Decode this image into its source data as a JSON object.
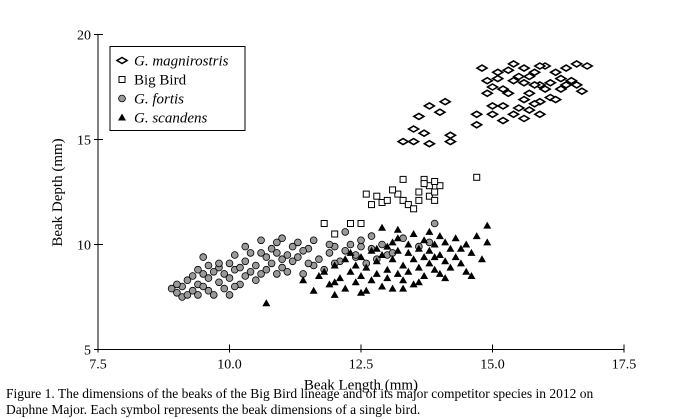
{
  "chart_data": {
    "type": "scatter",
    "xlabel": "Beak Length (mm)",
    "ylabel": "Beak Depth (mm)",
    "xlim": [
      7.5,
      17.5
    ],
    "ylim": [
      5,
      20
    ],
    "x_ticks": [
      7.5,
      10.0,
      12.5,
      15.0,
      17.5
    ],
    "x_tick_labels": [
      "7.5",
      "10.0",
      "12.5",
      "15.0",
      "17.5"
    ],
    "y_ticks": [
      5,
      10,
      15,
      20
    ],
    "y_tick_labels": [
      "5",
      "10",
      "15",
      "20"
    ],
    "grid": false,
    "legend_placement": "top-left",
    "series": [
      {
        "name": "G. magnirostris",
        "italic": true,
        "marker": "diamond",
        "color": "#000000",
        "points": [
          [
            13.3,
            14.9
          ],
          [
            13.5,
            14.9
          ],
          [
            13.7,
            15.3
          ],
          [
            13.8,
            14.8
          ],
          [
            14.2,
            14.9
          ],
          [
            13.5,
            15.5
          ],
          [
            13.6,
            16.1
          ],
          [
            14.0,
            16.3
          ],
          [
            13.8,
            16.6
          ],
          [
            14.1,
            16.8
          ],
          [
            14.2,
            15.2
          ],
          [
            14.7,
            15.7
          ],
          [
            15.0,
            16.6
          ],
          [
            14.9,
            17.2
          ],
          [
            15.2,
            17.4
          ],
          [
            15.4,
            17.8
          ],
          [
            15.6,
            17.7
          ],
          [
            15.1,
            17.9
          ],
          [
            15.5,
            18.0
          ],
          [
            15.8,
            18.2
          ],
          [
            15.9,
            17.6
          ],
          [
            16.0,
            17.4
          ],
          [
            15.7,
            17.2
          ],
          [
            15.3,
            17.2
          ],
          [
            15.0,
            17.5
          ],
          [
            15.6,
            16.9
          ],
          [
            15.9,
            16.8
          ],
          [
            16.1,
            17.0
          ],
          [
            15.2,
            16.6
          ],
          [
            15.5,
            16.5
          ],
          [
            15.7,
            16.4
          ],
          [
            15.9,
            16.2
          ],
          [
            15.4,
            16.2
          ],
          [
            15.6,
            16.0
          ],
          [
            15.8,
            16.7
          ],
          [
            16.2,
            16.9
          ],
          [
            16.0,
            18.5
          ],
          [
            16.4,
            18.4
          ],
          [
            16.6,
            18.6
          ],
          [
            16.8,
            18.5
          ],
          [
            16.3,
            17.9
          ],
          [
            16.5,
            17.8
          ],
          [
            16.1,
            17.7
          ],
          [
            16.2,
            18.2
          ],
          [
            15.1,
            18.2
          ],
          [
            15.4,
            18.6
          ],
          [
            15.6,
            18.4
          ],
          [
            14.8,
            18.4
          ],
          [
            16.3,
            17.4
          ],
          [
            16.7,
            17.3
          ],
          [
            16.6,
            17.6
          ],
          [
            15.9,
            18.5
          ],
          [
            15.7,
            18.0
          ],
          [
            14.9,
            17.8
          ],
          [
            15.3,
            18.3
          ],
          [
            16.4,
            17.6
          ],
          [
            15.0,
            16.2
          ],
          [
            15.2,
            15.9
          ],
          [
            14.7,
            16.2
          ],
          [
            15.8,
            17.6
          ]
        ]
      },
      {
        "name": "Big Bird",
        "italic": false,
        "marker": "square",
        "color": "#000000",
        "points": [
          [
            11.8,
            11.0
          ],
          [
            12.0,
            10.5
          ],
          [
            12.3,
            11.0
          ],
          [
            12.5,
            11.0
          ],
          [
            12.6,
            12.4
          ],
          [
            12.7,
            11.9
          ],
          [
            12.9,
            12.0
          ],
          [
            13.0,
            12.1
          ],
          [
            13.2,
            12.4
          ],
          [
            13.3,
            12.1
          ],
          [
            13.4,
            11.9
          ],
          [
            13.5,
            11.7
          ],
          [
            13.7,
            13.1
          ],
          [
            13.6,
            12.5
          ],
          [
            13.8,
            12.3
          ],
          [
            13.9,
            12.5
          ],
          [
            13.8,
            12.8
          ],
          [
            13.9,
            12.1
          ],
          [
            14.0,
            12.8
          ],
          [
            13.7,
            12.9
          ],
          [
            13.3,
            13.1
          ],
          [
            13.9,
            13.0
          ],
          [
            14.7,
            13.2
          ],
          [
            12.8,
            12.3
          ],
          [
            13.1,
            12.6
          ],
          [
            13.6,
            12.1
          ]
        ]
      },
      {
        "name": "G. fortis",
        "italic": false,
        "italic_label": true,
        "marker": "circle",
        "color": "#999999",
        "points": [
          [
            8.9,
            7.9
          ],
          [
            9.0,
            7.7
          ],
          [
            9.1,
            7.5
          ],
          [
            9.1,
            8.0
          ],
          [
            9.2,
            7.6
          ],
          [
            9.2,
            8.3
          ],
          [
            9.3,
            7.8
          ],
          [
            9.3,
            8.5
          ],
          [
            9.4,
            8.1
          ],
          [
            9.4,
            7.6
          ],
          [
            9.5,
            8.6
          ],
          [
            9.5,
            8.0
          ],
          [
            9.5,
            9.4
          ],
          [
            9.6,
            7.8
          ],
          [
            9.6,
            8.4
          ],
          [
            9.7,
            8.7
          ],
          [
            9.7,
            7.6
          ],
          [
            9.8,
            8.9
          ],
          [
            9.8,
            8.2
          ],
          [
            9.9,
            8.6
          ],
          [
            9.9,
            7.9
          ],
          [
            10.0,
            9.1
          ],
          [
            10.0,
            8.4
          ],
          [
            10.0,
            7.6
          ],
          [
            10.1,
            8.8
          ],
          [
            10.1,
            9.5
          ],
          [
            10.2,
            8.1
          ],
          [
            10.2,
            8.9
          ],
          [
            10.3,
            8.5
          ],
          [
            10.3,
            9.2
          ],
          [
            10.4,
            9.6
          ],
          [
            10.4,
            8.7
          ],
          [
            10.5,
            8.3
          ],
          [
            10.5,
            9.0
          ],
          [
            10.6,
            10.2
          ],
          [
            10.6,
            8.6
          ],
          [
            10.7,
            9.4
          ],
          [
            10.7,
            8.8
          ],
          [
            10.8,
            9.8
          ],
          [
            10.8,
            9.1
          ],
          [
            10.9,
            10.1
          ],
          [
            10.9,
            9.6
          ],
          [
            11.0,
            9.3
          ],
          [
            11.0,
            8.9
          ],
          [
            11.0,
            10.3
          ],
          [
            11.1,
            9.5
          ],
          [
            11.1,
            8.7
          ],
          [
            11.2,
            9.9
          ],
          [
            11.2,
            9.2
          ],
          [
            11.3,
            10.1
          ],
          [
            11.3,
            9.4
          ],
          [
            11.4,
            8.6
          ],
          [
            11.5,
            9.8
          ],
          [
            11.6,
            9.0
          ],
          [
            11.6,
            10.2
          ],
          [
            11.7,
            9.3
          ],
          [
            11.8,
            8.8
          ],
          [
            11.9,
            9.6
          ],
          [
            12.0,
            9.9
          ],
          [
            12.1,
            9.2
          ],
          [
            12.2,
            9.7
          ],
          [
            12.3,
            10.0
          ],
          [
            12.4,
            9.4
          ],
          [
            12.5,
            9.9
          ],
          [
            12.6,
            9.1
          ],
          [
            12.7,
            9.8
          ],
          [
            12.8,
            9.3
          ],
          [
            12.9,
            10.0
          ],
          [
            13.0,
            9.5
          ],
          [
            13.1,
            9.6
          ],
          [
            13.3,
            10.3
          ],
          [
            13.6,
            9.9
          ],
          [
            13.9,
            11.0
          ],
          [
            12.2,
            10.6
          ],
          [
            12.5,
            10.2
          ],
          [
            9.0,
            8.1
          ],
          [
            9.4,
            8.8
          ],
          [
            9.8,
            9.1
          ],
          [
            10.1,
            8.0
          ],
          [
            10.6,
            9.6
          ],
          [
            11.5,
            9.1
          ],
          [
            11.9,
            10.0
          ],
          [
            12.7,
            10.4
          ],
          [
            13.8,
            10.1
          ],
          [
            9.6,
            9.0
          ],
          [
            10.3,
            9.9
          ],
          [
            10.9,
            8.6
          ],
          [
            11.4,
            9.7
          ],
          [
            12.0,
            9.1
          ],
          [
            12.4,
            9.5
          ]
        ]
      },
      {
        "name": "G. scandens",
        "italic": true,
        "marker": "triangle",
        "color": "#000000",
        "points": [
          [
            10.7,
            7.2
          ],
          [
            11.4,
            8.3
          ],
          [
            11.6,
            7.8
          ],
          [
            11.8,
            8.7
          ],
          [
            11.9,
            8.1
          ],
          [
            12.0,
            9.0
          ],
          [
            12.0,
            7.6
          ],
          [
            12.1,
            8.4
          ],
          [
            12.2,
            9.3
          ],
          [
            12.2,
            7.9
          ],
          [
            12.3,
            8.7
          ],
          [
            12.3,
            9.6
          ],
          [
            12.4,
            8.2
          ],
          [
            12.4,
            9.0
          ],
          [
            12.5,
            8.5
          ],
          [
            12.5,
            9.4
          ],
          [
            12.6,
            7.8
          ],
          [
            12.6,
            8.9
          ],
          [
            12.7,
            8.3
          ],
          [
            12.7,
            9.7
          ],
          [
            12.8,
            8.6
          ],
          [
            12.8,
            9.2
          ],
          [
            12.9,
            8.0
          ],
          [
            12.9,
            9.5
          ],
          [
            13.0,
            8.4
          ],
          [
            13.0,
            9.9
          ],
          [
            13.0,
            8.8
          ],
          [
            13.1,
            9.3
          ],
          [
            13.1,
            7.9
          ],
          [
            13.2,
            8.6
          ],
          [
            13.2,
            9.7
          ],
          [
            13.2,
            10.3
          ],
          [
            13.3,
            9.0
          ],
          [
            13.3,
            8.3
          ],
          [
            13.4,
            9.6
          ],
          [
            13.4,
            10.0
          ],
          [
            13.4,
            8.7
          ],
          [
            13.5,
            9.3
          ],
          [
            13.5,
            10.5
          ],
          [
            13.5,
            8.1
          ],
          [
            13.6,
            9.8
          ],
          [
            13.6,
            8.9
          ],
          [
            13.7,
            10.2
          ],
          [
            13.7,
            9.4
          ],
          [
            13.7,
            8.5
          ],
          [
            13.8,
            9.7
          ],
          [
            13.8,
            10.6
          ],
          [
            13.8,
            9.1
          ],
          [
            13.9,
            10.0
          ],
          [
            13.9,
            8.8
          ],
          [
            14.0,
            9.5
          ],
          [
            14.0,
            10.4
          ],
          [
            14.0,
            8.6
          ],
          [
            14.1,
            9.2
          ],
          [
            14.1,
            10.1
          ],
          [
            14.2,
            9.8
          ],
          [
            14.2,
            8.9
          ],
          [
            14.3,
            9.4
          ],
          [
            14.3,
            10.3
          ],
          [
            14.4,
            9.1
          ],
          [
            14.4,
            9.8
          ],
          [
            14.5,
            10.0
          ],
          [
            14.5,
            8.7
          ],
          [
            14.6,
            9.6
          ],
          [
            14.7,
            10.4
          ],
          [
            14.9,
            10.9
          ],
          [
            14.9,
            10.1
          ],
          [
            14.8,
            9.3
          ],
          [
            13.1,
            10.1
          ],
          [
            12.9,
            10.8
          ],
          [
            13.2,
            10.7
          ],
          [
            12.8,
            9.8
          ],
          [
            14.6,
            8.5
          ],
          [
            12.0,
            8.2
          ],
          [
            11.7,
            8.5
          ],
          [
            12.5,
            7.7
          ],
          [
            13.3,
            7.9
          ],
          [
            13.6,
            8.2
          ],
          [
            14.1,
            8.4
          ],
          [
            13.9,
            9.4
          ]
        ]
      }
    ]
  },
  "caption": {
    "line1": "Figure 1. The dimensions of the beaks of the Big Bird lineage and of its major competitor species in 2012 on",
    "line2": "Daphne Major. Each symbol represents the beak dimensions of a single bird."
  }
}
